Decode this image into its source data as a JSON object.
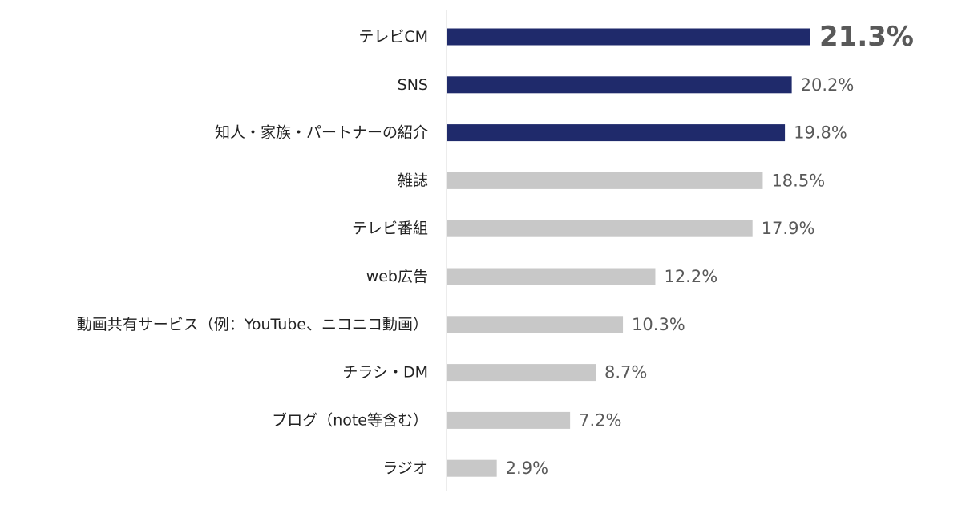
{
  "chart_data": {
    "type": "bar",
    "orientation": "horizontal",
    "title": "",
    "xlabel": "",
    "ylabel": "",
    "categories": [
      "テレビCM",
      "SNS",
      "知人・家族・パートナーの紹介",
      "雑誌",
      "テレビ番組",
      "web広告",
      "動画共有サービス（例：YouTube、ニコニコ動画）",
      "チラシ・DM",
      "ブログ（note等含む）",
      "ラジオ"
    ],
    "values": [
      21.3,
      20.2,
      19.8,
      18.5,
      17.9,
      12.2,
      10.3,
      8.7,
      7.2,
      2.9
    ],
    "value_labels": [
      "21.3%",
      "20.2%",
      "19.8%",
      "18.5%",
      "17.9%",
      "12.2%",
      "10.3%",
      "8.7%",
      "7.2%",
      "2.9%"
    ],
    "highlight_count": 3,
    "emphasized_index": 0,
    "xlim": [
      0,
      22
    ],
    "grid": false,
    "legend": "none"
  },
  "colors": {
    "highlight_bar": "#1f2a6b",
    "normal_bar": "#c8c8c8",
    "axis_line": "#d9d9d9",
    "emphasized_label": "#f7931e",
    "value_label": "#595959",
    "category_label": "#222222"
  }
}
